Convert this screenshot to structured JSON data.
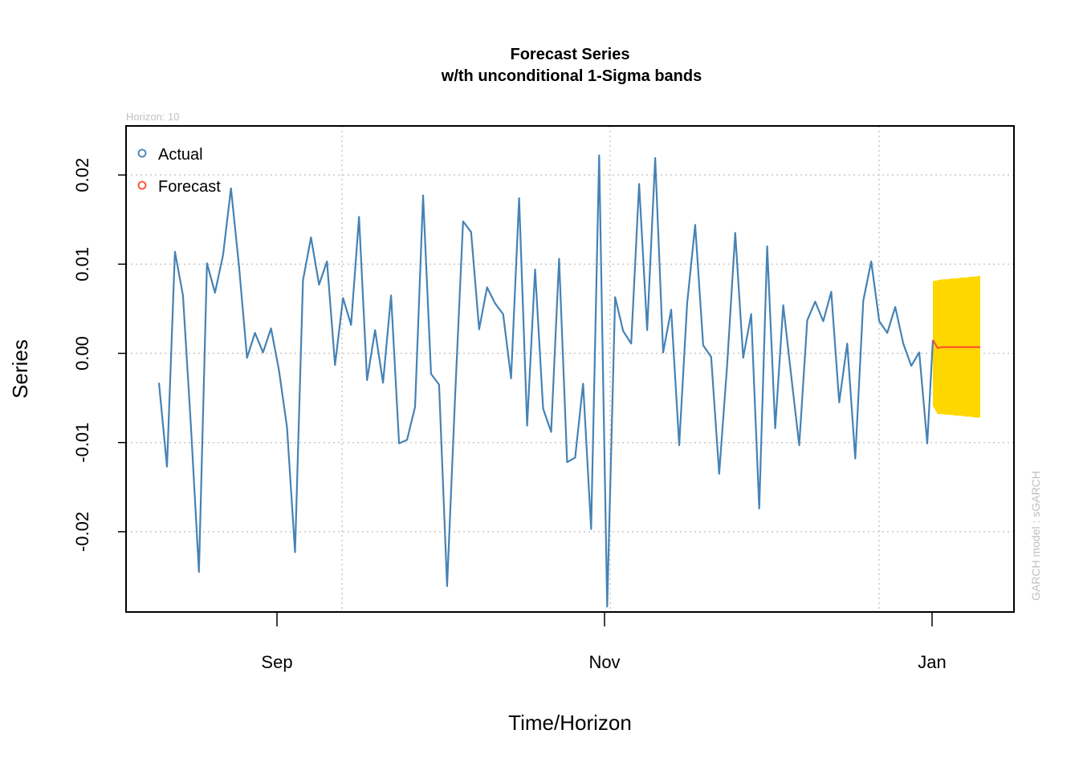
{
  "chart_data": {
    "type": "line",
    "title": "Forecast Series",
    "subtitle": "w/th unconditional 1-Sigma bands",
    "xlabel": "Time/Horizon",
    "ylabel": "Series",
    "horizon_note": "Horizon: 10",
    "model_note": "GARCH model :  sGARCH",
    "ylim": [
      -0.029,
      0.0255
    ],
    "y_ticks": [
      -0.02,
      -0.01,
      0.0,
      0.01,
      0.02
    ],
    "y_tick_labels": [
      "-0.02",
      "-0.01",
      "0.00",
      "0.01",
      "0.02"
    ],
    "x_ticks": [
      "Sep",
      "Nov",
      "Jan"
    ],
    "grid": true,
    "legend_position": "top-left",
    "colors": {
      "actual": "#4682b4",
      "forecast": "#ff4a2e",
      "band": "#ffd700",
      "grid": "#c8c8c8",
      "note": "#c0c0c0"
    },
    "series": [
      {
        "name": "Actual",
        "values": [
          -0.0033,
          -0.0127,
          0.0114,
          0.0065,
          -0.0083,
          -0.0245,
          0.0101,
          0.0068,
          0.011,
          0.0185,
          0.0098,
          -0.0005,
          0.0023,
          0.0001,
          0.0028,
          -0.0019,
          -0.0083,
          -0.0223,
          0.0082,
          0.013,
          0.0077,
          0.0103,
          -0.0013,
          0.0062,
          0.0032,
          0.0153,
          -0.003,
          0.0026,
          -0.0033,
          0.0065,
          -0.0101,
          -0.0097,
          -0.006,
          0.0177,
          -0.0023,
          -0.0035,
          -0.0261,
          -0.005,
          0.0148,
          0.0136,
          0.0027,
          0.0074,
          0.0056,
          0.0044,
          -0.0028,
          0.0174,
          -0.0081,
          0.0094,
          -0.0062,
          -0.0088,
          0.0106,
          -0.0122,
          -0.0117,
          -0.0034,
          -0.0197,
          0.0222,
          -0.0284,
          0.0063,
          0.0025,
          0.0011,
          0.019,
          0.0026,
          0.0219,
          0.0001,
          0.0049,
          -0.0103,
          0.0056,
          0.0144,
          0.0009,
          -0.0004,
          -0.0135,
          -0.0012,
          0.0135,
          -0.0005,
          0.0044,
          -0.0174,
          0.012,
          -0.0084,
          0.0054,
          -0.0025,
          -0.0103,
          0.0037,
          0.0058,
          0.0036,
          0.0069,
          -0.0055,
          0.0011,
          -0.0118,
          0.0059,
          0.0103,
          0.0036,
          0.0023,
          0.0052,
          0.0011,
          -0.0014,
          0.0001,
          -0.0101,
          0.0015
        ]
      },
      {
        "name": "Forecast",
        "values": [
          0.0015,
          0.0006,
          0.0007,
          0.0007,
          0.0007,
          0.0007,
          0.0007,
          0.0007,
          0.0007,
          0.0007,
          0.0007
        ],
        "upper": [
          0.0081,
          0.0082,
          0.0083,
          0.0083,
          0.0084,
          0.0084,
          0.0085,
          0.0085,
          0.0086,
          0.0086,
          0.0087
        ],
        "lower": [
          -0.0059,
          -0.0068,
          -0.0068,
          -0.0069,
          -0.0069,
          -0.007,
          -0.007,
          -0.0071,
          -0.0071,
          -0.0072,
          -0.0072
        ]
      }
    ]
  }
}
